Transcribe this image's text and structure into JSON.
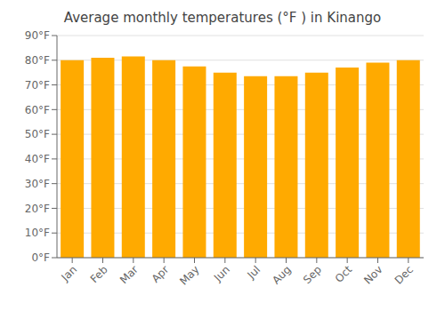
{
  "chart_data": {
    "type": "bar",
    "title": "Average monthly temperatures (°F ) in Kinango",
    "categories": [
      "Jan",
      "Feb",
      "Mar",
      "Apr",
      "May",
      "Jun",
      "Jul",
      "Aug",
      "Sep",
      "Oct",
      "Nov",
      "Dec"
    ],
    "values": [
      80,
      81,
      81.5,
      80,
      77.5,
      75,
      73.5,
      73.5,
      75,
      77,
      79,
      80
    ],
    "color": "#FFAA00",
    "ylim": [
      0,
      90
    ],
    "yticks": [
      {
        "value": 0,
        "label": "0°F"
      },
      {
        "value": 10,
        "label": "10°F"
      },
      {
        "value": 20,
        "label": "20°F"
      },
      {
        "value": 30,
        "label": "30°F"
      },
      {
        "value": 40,
        "label": "40°F"
      },
      {
        "value": 50,
        "label": "50°F"
      },
      {
        "value": 60,
        "label": "60°F"
      },
      {
        "value": 70,
        "label": "70°F"
      },
      {
        "value": 80,
        "label": "80°F"
      },
      {
        "value": 90,
        "label": "90°F"
      }
    ],
    "grid": true
  }
}
